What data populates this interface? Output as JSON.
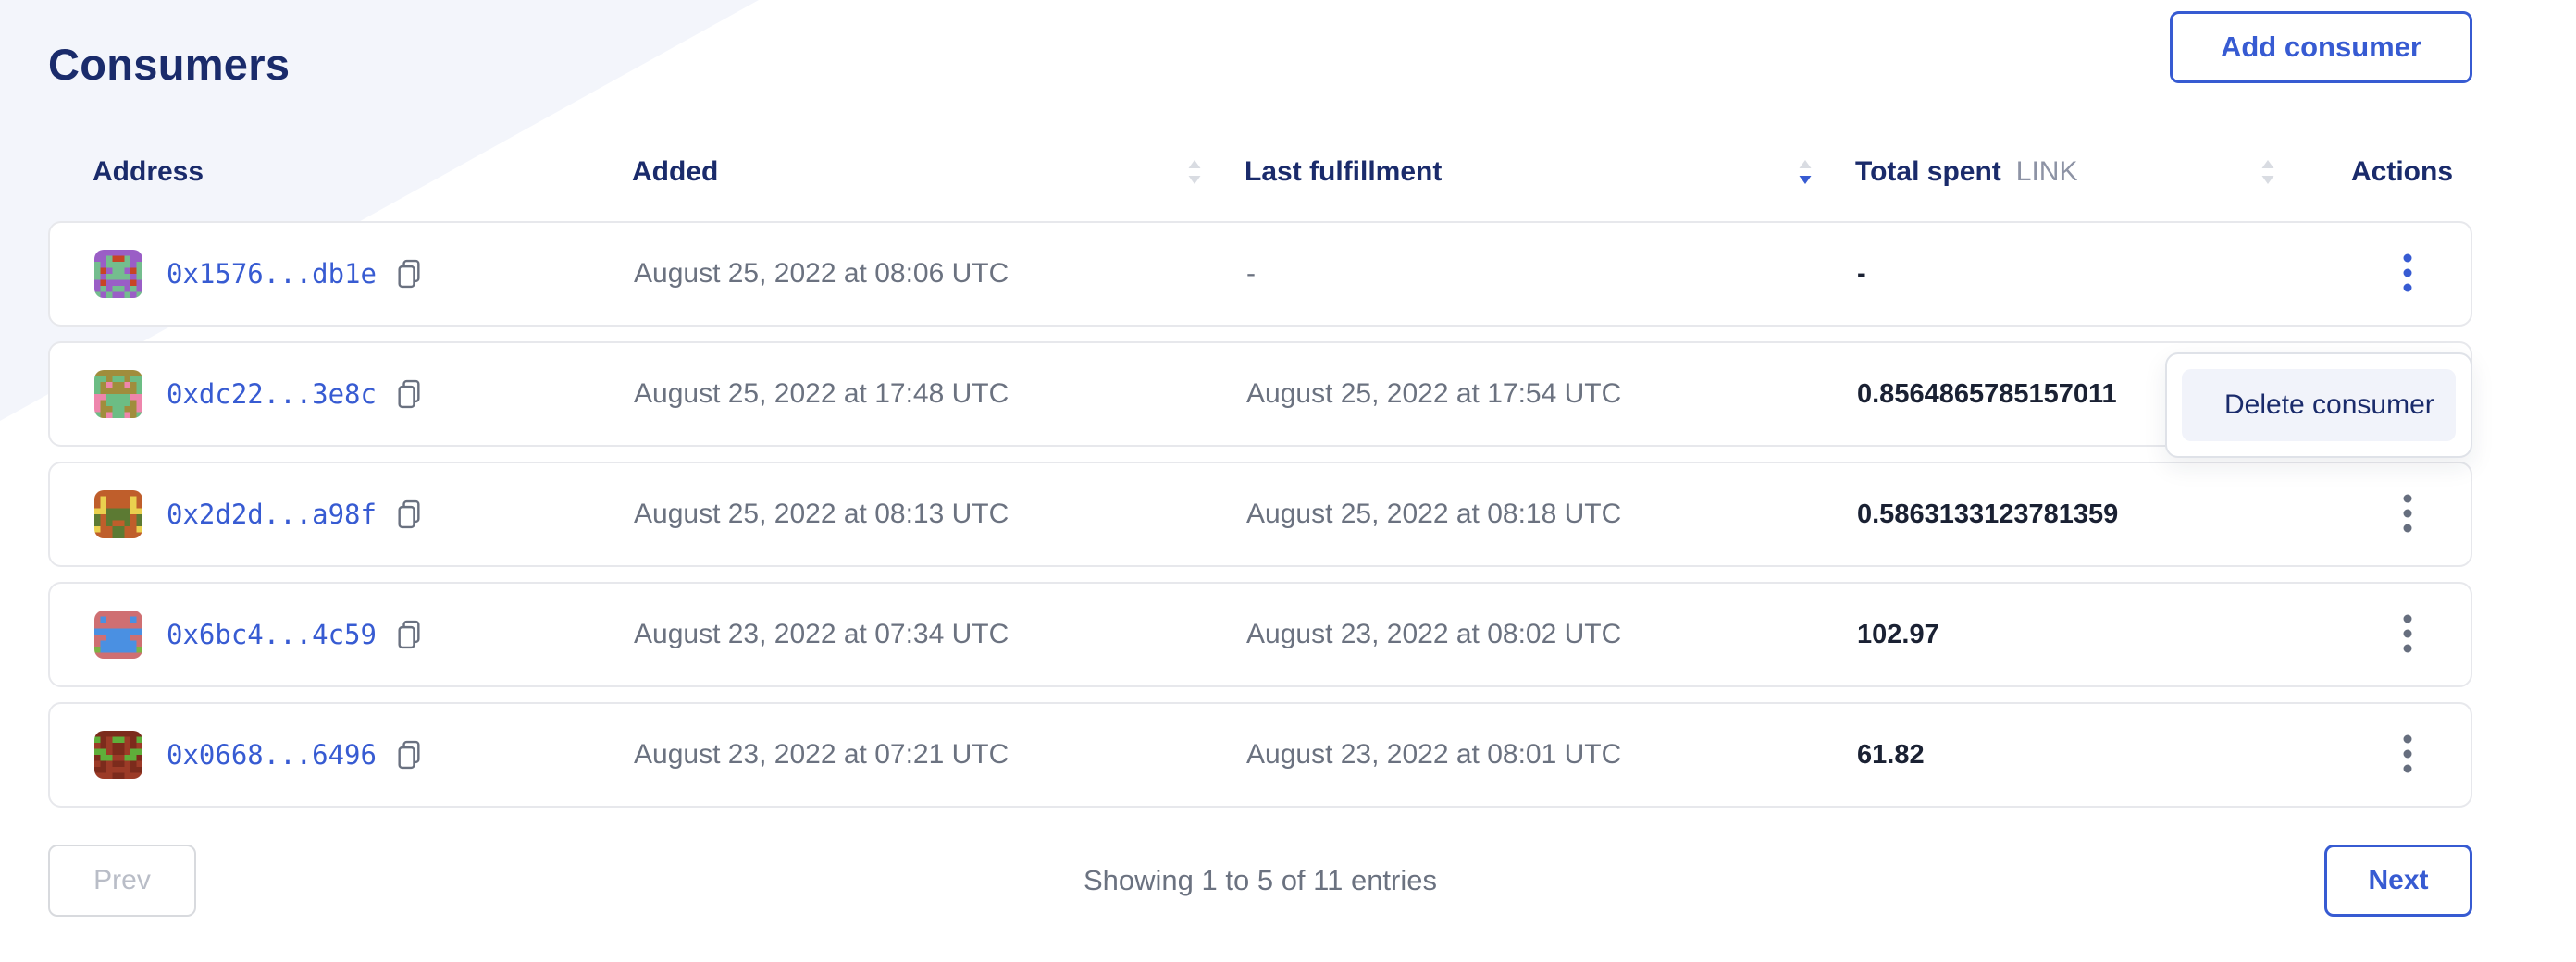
{
  "page": {
    "title": "Consumers"
  },
  "header": {
    "add_button_label": "Add consumer"
  },
  "table": {
    "columns": [
      {
        "label": "Address",
        "sortable": false,
        "sort": "none"
      },
      {
        "label": "Added",
        "sortable": true,
        "sort": "none"
      },
      {
        "label": "Last fulfillment",
        "sortable": true,
        "sort": "desc"
      },
      {
        "label": "Total spent",
        "unit": "LINK",
        "sortable": true,
        "sort": "none"
      },
      {
        "label": "Actions",
        "sortable": false,
        "sort": "none"
      }
    ],
    "rows": [
      {
        "address": "0x1576...db1e",
        "added": "August 25, 2022 at 08:06 UTC",
        "last_fulfillment": "-",
        "total_spent": "-",
        "avatar": {
          "bg": "#74bd8e",
          "fg": "#9a5ec6",
          "spot": "#c74425"
        },
        "menu_open": true
      },
      {
        "address": "0xdc22...3e8c",
        "added": "August 25, 2022 at 17:48 UTC",
        "last_fulfillment": "August 25, 2022 at 17:54 UTC",
        "total_spent": "0.8564865785157011",
        "avatar": {
          "bg": "#6cbd84",
          "fg": "#a08d3c",
          "spot": "#ee86ac"
        },
        "menu_open": false
      },
      {
        "address": "0x2d2d...a98f",
        "added": "August 25, 2022 at 08:13 UTC",
        "last_fulfillment": "August 25, 2022 at 08:18 UTC",
        "total_spent": "0.5863133123781359",
        "avatar": {
          "bg": "#5c7a33",
          "fg": "#bf5e2b",
          "spot": "#ead04e"
        },
        "menu_open": false
      },
      {
        "address": "0x6bc4...4c59",
        "added": "August 23, 2022 at 07:34 UTC",
        "last_fulfillment": "August 23, 2022 at 08:02 UTC",
        "total_spent": "102.97",
        "avatar": {
          "bg": "#4a90e2",
          "fg": "#cf6f72",
          "spot": "#7db344"
        },
        "menu_open": false
      },
      {
        "address": "0x0668...6496",
        "added": "August 23, 2022 at 07:21 UTC",
        "last_fulfillment": "August 23, 2022 at 08:01 UTC",
        "total_spent": "61.82",
        "avatar": {
          "bg": "#9c3b27",
          "fg": "#7c2b1c",
          "spot": "#5fae3a"
        },
        "menu_open": false
      }
    ]
  },
  "menu": {
    "items": [
      {
        "label": "Delete consumer",
        "icon": "x-circle-icon"
      }
    ]
  },
  "pagination": {
    "prev_label": "Prev",
    "summary": "Showing 1 to 5 of 11 entries",
    "next_label": "Next"
  },
  "icons": {
    "copy": "copy-icon",
    "kebab": "kebab-menu-icon",
    "sort": "sort-arrows-icon"
  },
  "colors": {
    "accent": "#375bd2",
    "heading": "#1a2b6b",
    "bg_accent": "#f3f5fb",
    "text_muted": "#6b7280",
    "text_dark": "#1a2133",
    "menu_icon_bg": "#202b5e"
  }
}
